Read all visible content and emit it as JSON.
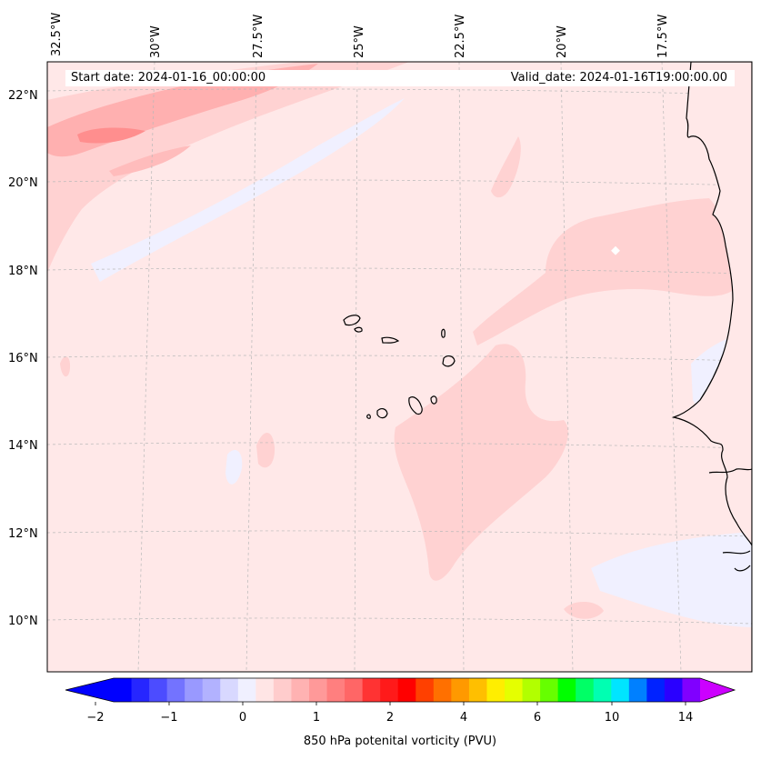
{
  "map": {
    "longitude_labels": [
      "32.5°W",
      "30°W",
      "27.5°W",
      "25°W",
      "22.5°W",
      "20°W",
      "17.5°W"
    ],
    "latitude_labels": [
      "22°N",
      "20°N",
      "18°N",
      "16°N",
      "14°N",
      "12°N",
      "10°N"
    ],
    "start_date": "Start date: 2024-01-16_00:00:00",
    "valid_date": "Valid_date: 2024-01-16T19:00:00.00",
    "background_color": "#ffe8e8"
  },
  "colorbar": {
    "label": "850 hPa potenital vorticity (PVU)",
    "tick_labels": [
      "−2",
      "−1",
      "0",
      "1",
      "2",
      "4",
      "6",
      "10",
      "14"
    ],
    "colors": [
      "#0000ff",
      "#2626ff",
      "#4c4cff",
      "#7373ff",
      "#9999ff",
      "#b2b2ff",
      "#d8d8ff",
      "#f0f0ff",
      "#ffe5e5",
      "#ffcccc",
      "#ffb2b2",
      "#ff9999",
      "#ff7f7f",
      "#ff6666",
      "#ff3333",
      "#ff1a1a",
      "#ff0000",
      "#ff4000",
      "#ff7000",
      "#ff9900",
      "#ffbf00",
      "#ffee00",
      "#e5ff00",
      "#b2ff00",
      "#66ff00",
      "#00ff00",
      "#00ff66",
      "#00ffb2",
      "#00e5ff",
      "#0080ff",
      "#0022ff",
      "#2a00ff",
      "#8000ff"
    ],
    "under_color": "#0000ff",
    "over_color": "#cc00ff"
  }
}
